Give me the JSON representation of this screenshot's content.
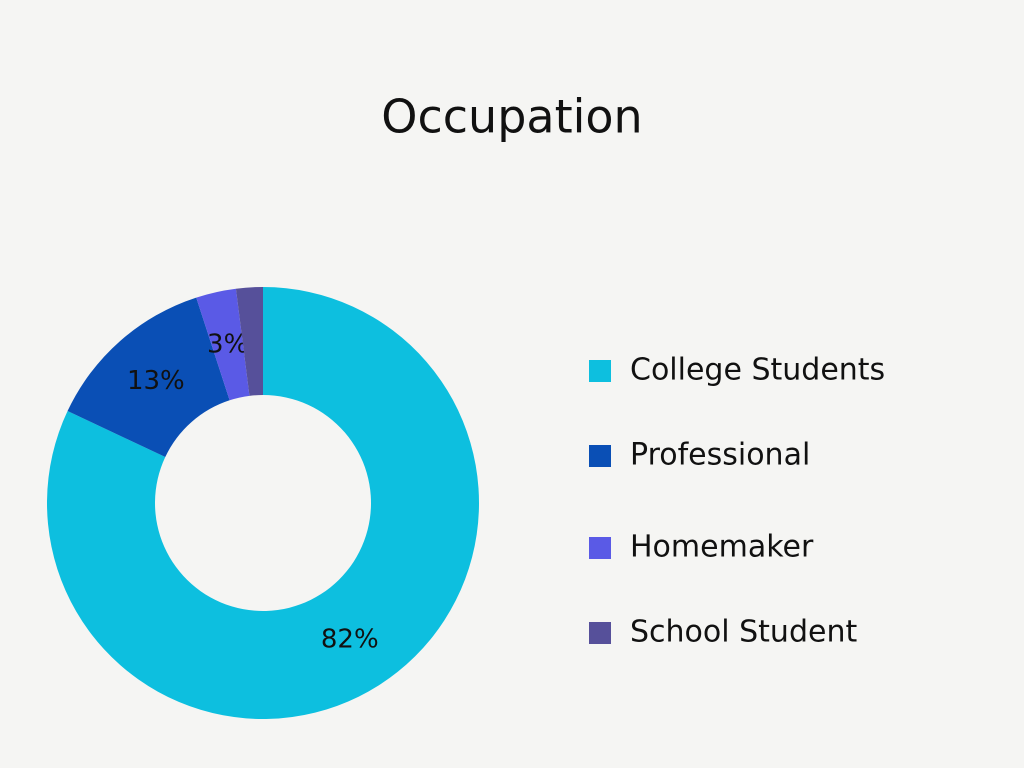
{
  "chart_data": {
    "type": "donut",
    "title": "Occupation",
    "categories": [
      "College Students",
      "Professional",
      "Homemaker",
      "School Student"
    ],
    "values": [
      82,
      13,
      3,
      2
    ],
    "value_labels": [
      "82%",
      "13%",
      "3%",
      null
    ],
    "colors": [
      "#0dbfdf",
      "#0a4fb5",
      "#5a5ae6",
      "#56509a"
    ],
    "legend": "right"
  }
}
